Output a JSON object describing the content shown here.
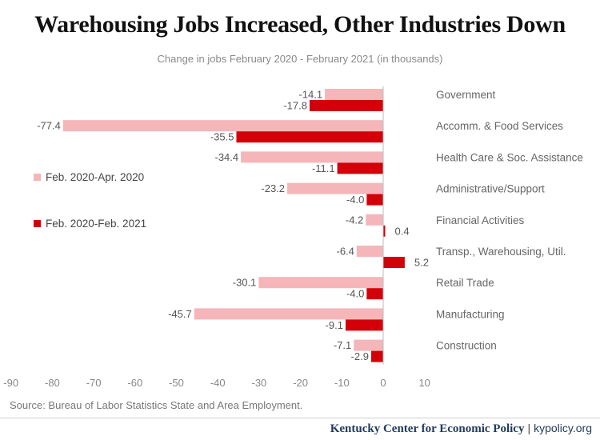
{
  "chart_data": {
    "type": "bar",
    "orientation": "horizontal",
    "title": "Warehousing Jobs Increased, Other Industries Down",
    "subtitle": "Change in jobs February 2020 - February 2021 (in thousands)",
    "categories": [
      "Government",
      "Accomm. & Food Services",
      "Health Care & Soc. Assistance",
      "Administrative/Support",
      "Financial Activities",
      "Transp., Warehousing, Util.",
      "Retail Trade",
      "Manufacturing",
      "Construction"
    ],
    "series": [
      {
        "name": "Feb. 2020-Apr. 2020",
        "color": "#f4b6b9",
        "values": [
          -14.1,
          -77.4,
          -34.4,
          -23.2,
          -4.2,
          -6.4,
          -30.1,
          -45.7,
          -7.1
        ],
        "labels": [
          "-14.1",
          "-77.4",
          "-34.4",
          "-23.2",
          "-4.2",
          "-6.4",
          "-30.1",
          "-45.7",
          "-7.1"
        ]
      },
      {
        "name": "Feb. 2020-Feb. 2021",
        "color": "#d30009",
        "values": [
          -17.8,
          -35.5,
          -11.1,
          -4.0,
          0.4,
          5.2,
          -4.0,
          -9.1,
          -2.9
        ],
        "labels": [
          "-17.8",
          "-35.5",
          "-11.1",
          "-4.0",
          "0.4",
          "5.2",
          "-4.0",
          "-9.1",
          "-2.9"
        ]
      }
    ],
    "xlim": [
      -90,
      10
    ],
    "xticks": [
      "-90",
      "-80",
      "-70",
      "-60",
      "-50",
      "-40",
      "-30",
      "-20",
      "-10",
      "0",
      "10"
    ],
    "legend_position": "left",
    "grid": false
  },
  "source": "Source: Bureau of Labor Statistics State and Area Employment.",
  "footer": {
    "org": "Kentucky Center for Economic Policy",
    "separator": "|",
    "url": "kypolicy.org"
  }
}
